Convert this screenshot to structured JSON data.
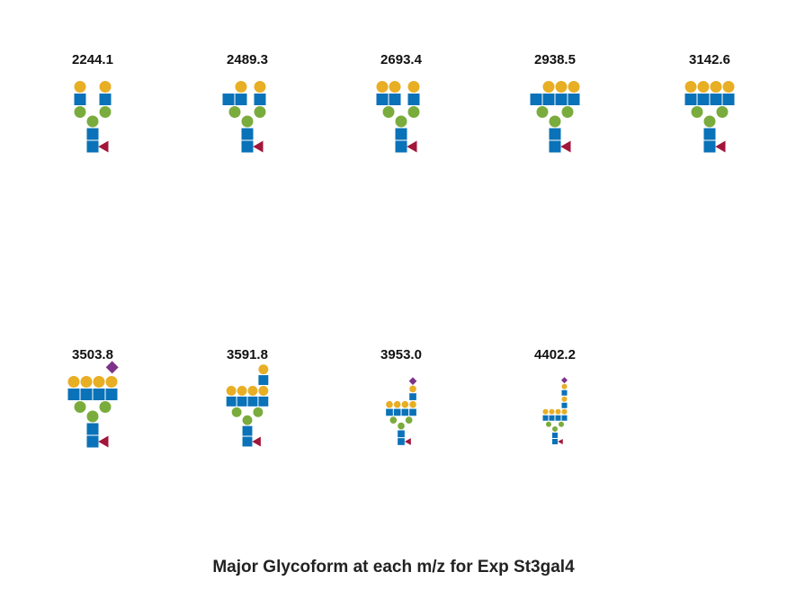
{
  "caption": "Major Glycoform at each m/z for Exp St3gal4",
  "colors": {
    "GlcNAc": "#0a72b8",
    "Man": "#7aac3d",
    "Gal": "#e8ae24",
    "Fuc": "#a2163a",
    "NeuAc": "#7d3289"
  },
  "glycans": [
    {
      "mz": "2244.1",
      "antennae": 2,
      "gal": 2,
      "lacnac": 0,
      "neuac": 0
    },
    {
      "mz": "2489.3",
      "antennae": 3,
      "gal": 2,
      "lacnac": 0,
      "neuac": 0
    },
    {
      "mz": "2693.4",
      "antennae": 3,
      "gal": 3,
      "lacnac": 0,
      "neuac": 0
    },
    {
      "mz": "2938.5",
      "antennae": 4,
      "gal": 3,
      "lacnac": 0,
      "neuac": 0
    },
    {
      "mz": "3142.6",
      "antennae": 4,
      "gal": 4,
      "lacnac": 0,
      "neuac": 0
    },
    {
      "mz": "3503.8",
      "antennae": 4,
      "gal": 4,
      "lacnac": 0,
      "neuac": 1
    },
    {
      "mz": "3591.8",
      "antennae": 4,
      "gal": 4,
      "lacnac": 1,
      "neuac": 0
    },
    {
      "mz": "3953.0",
      "antennae": 4,
      "gal": 4,
      "lacnac": 1,
      "neuac": 1
    },
    {
      "mz": "4402.2",
      "antennae": 4,
      "gal": 4,
      "lacnac": 2,
      "neuac": 1
    }
  ]
}
